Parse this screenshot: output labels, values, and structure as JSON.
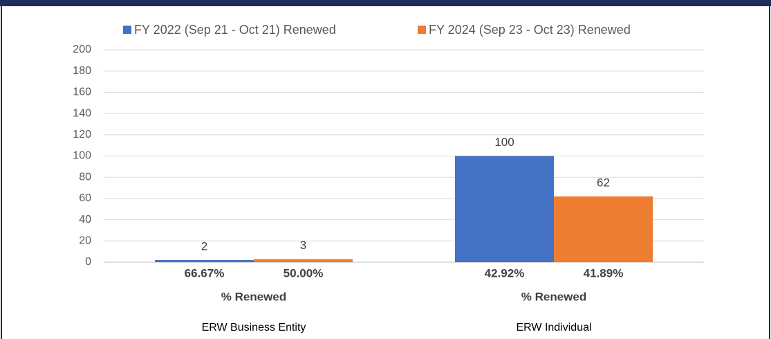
{
  "chart_data": {
    "type": "bar",
    "categories": [
      "ERW Business Entity",
      "ERW Individual"
    ],
    "series": [
      {
        "name": "FY 2022 (Sep 21 - Oct 21) Renewed",
        "color": "#4472c4",
        "values": [
          2,
          100
        ],
        "percent_labels": [
          "66.67%",
          "42.92%"
        ]
      },
      {
        "name": "FY 2024 (Sep 23 - Oct 23) Renewed",
        "color": "#ed7d31",
        "values": [
          3,
          62
        ],
        "percent_labels": [
          "50.00%",
          "41.89%"
        ]
      }
    ],
    "percent_title": "% Renewed",
    "ylim": [
      0,
      200
    ],
    "yticks": [
      0,
      20,
      40,
      60,
      80,
      100,
      120,
      140,
      160,
      180,
      200
    ],
    "grid": true,
    "legend": "top"
  }
}
